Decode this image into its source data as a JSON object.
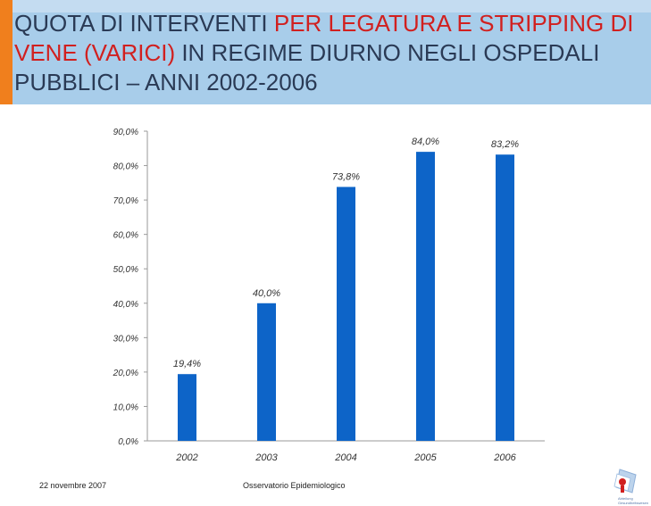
{
  "slide": {
    "title_parts": [
      "QUOTA DI INTERVENTI ",
      "PER LEGATURA E STRIPPING DI VENE (VARICI)",
      " IN REGIME DIURNO NEGLI OSPEDALI PUBBLICI – ANNI 2002-2006"
    ],
    "footer_date": "22 novembre 2007",
    "footer_org": "Osservatorio Epidemiologico",
    "logo_text": "Abteilung Gesundheitswesen",
    "colors": {
      "title_bg": "#a8cdea",
      "accent": "#f07f1d",
      "highlight": "#d1201f",
      "bar": "#0d64c8"
    }
  },
  "chart_data": {
    "type": "bar",
    "title": "",
    "xlabel": "",
    "ylabel": "",
    "categories": [
      "2002",
      "2003",
      "2004",
      "2005",
      "2006"
    ],
    "values": [
      19.4,
      40.0,
      73.8,
      84.0,
      83.2
    ],
    "value_labels": [
      "19,4%",
      "40,0%",
      "73,8%",
      "84,0%",
      "83,2%"
    ],
    "ylim": [
      0,
      90
    ],
    "yticks": [
      0,
      10,
      20,
      30,
      40,
      50,
      60,
      70,
      80,
      90
    ],
    "ytick_labels": [
      "0,0%",
      "10,0%",
      "20,0%",
      "30,0%",
      "40,0%",
      "50,0%",
      "60,0%",
      "70,0%",
      "80,0%",
      "90,0%"
    ],
    "grid": false,
    "legend": "none"
  }
}
